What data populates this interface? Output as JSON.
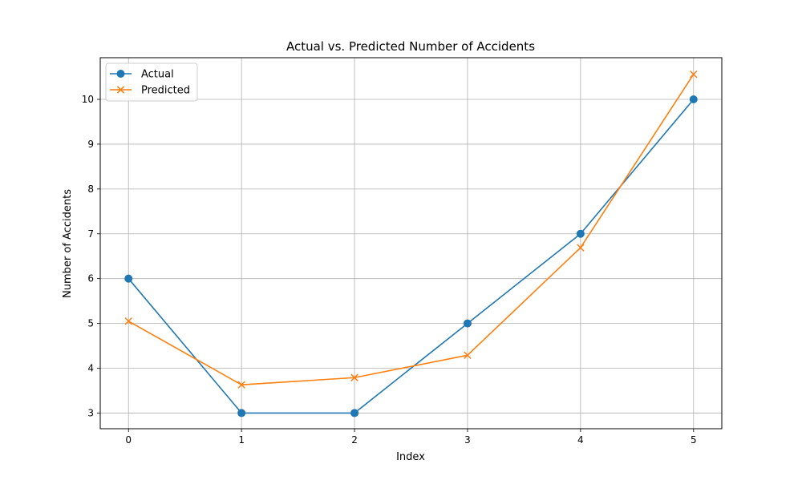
{
  "chart_data": {
    "type": "line",
    "title": "Actual vs. Predicted Number of Accidents",
    "xlabel": "Index",
    "ylabel": "Number of Accidents",
    "x": [
      0,
      1,
      2,
      3,
      4,
      5
    ],
    "x_ticks": [
      "0",
      "1",
      "2",
      "3",
      "4",
      "5"
    ],
    "y_ticks": [
      "3",
      "4",
      "5",
      "6",
      "7",
      "8",
      "9",
      "10"
    ],
    "xlim": [
      -0.25,
      5.25
    ],
    "ylim": [
      2.65,
      10.93
    ],
    "grid": true,
    "legend_position": "top-left",
    "series": [
      {
        "name": "Actual",
        "values": [
          6,
          3,
          3,
          5,
          7,
          10
        ],
        "color": "#1f77b4",
        "marker": "circle"
      },
      {
        "name": "Predicted",
        "values": [
          5.05,
          3.63,
          3.79,
          4.29,
          6.69,
          10.56
        ],
        "color": "#ff7f0e",
        "marker": "x"
      }
    ]
  }
}
